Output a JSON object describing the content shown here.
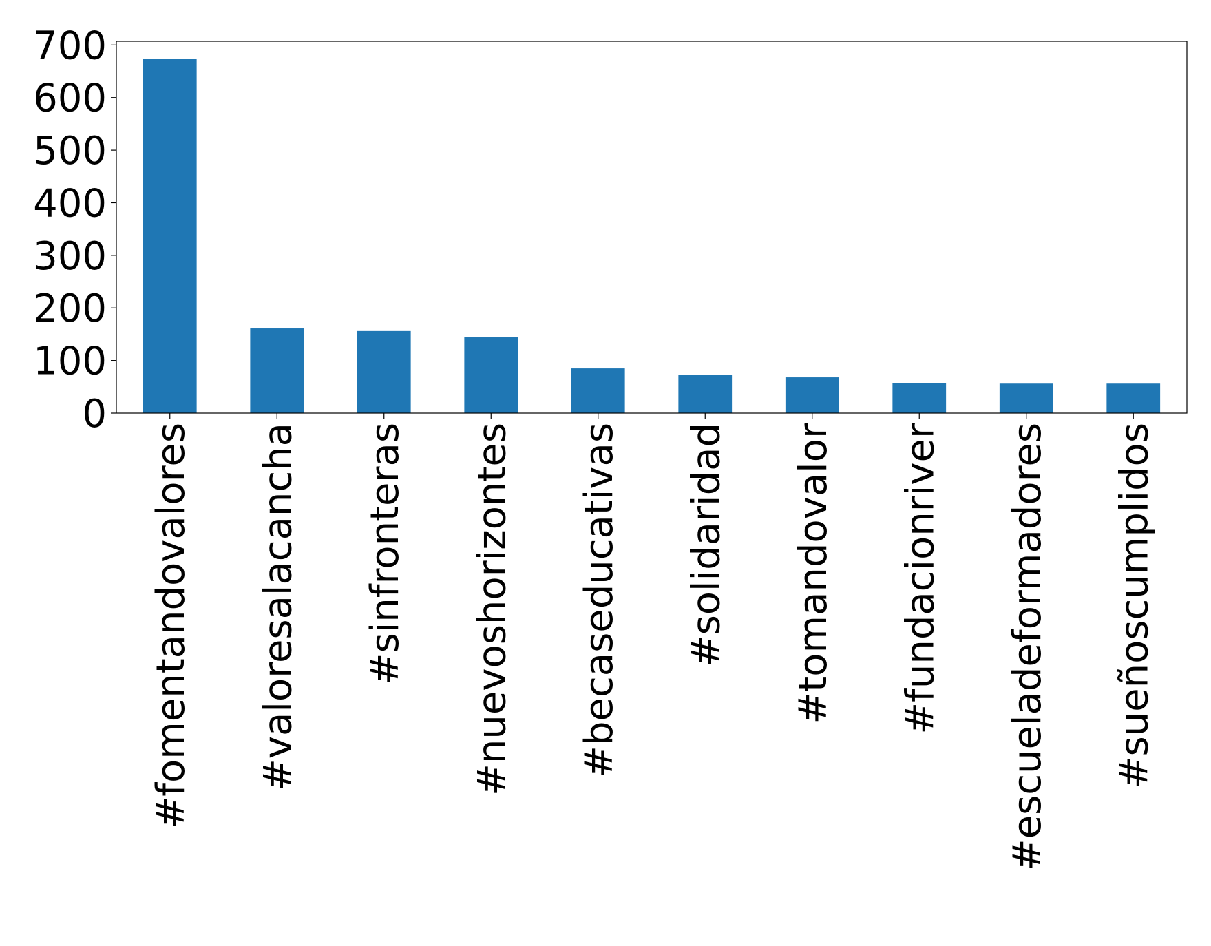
{
  "chart_data": {
    "type": "bar",
    "categories": [
      "#fomentandovalores",
      "#valoresalacancha",
      "#sinfronteras",
      "#nuevoshorizontes",
      "#becaseducativas",
      "#solidaridad",
      "#tomandovalor",
      "#fundacionriver",
      "#escueladeformadores",
      "#sueñoscumplidos"
    ],
    "values": [
      673,
      161,
      156,
      144,
      85,
      72,
      68,
      57,
      56,
      56
    ],
    "color": "#1f77b4",
    "ylim": [
      0,
      707
    ],
    "yticks": [
      0,
      100,
      200,
      300,
      400,
      500,
      600,
      700
    ],
    "grid": false
  }
}
